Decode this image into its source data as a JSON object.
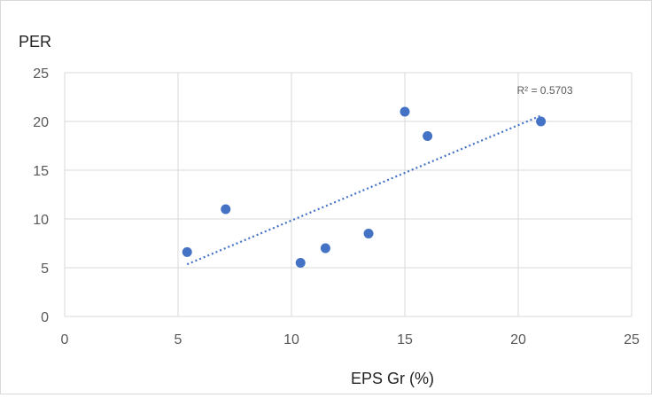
{
  "chart_data": {
    "type": "scatter",
    "title": "",
    "xlabel": "EPS Gr (%)",
    "ylabel": "PER",
    "xlim": [
      0,
      25
    ],
    "ylim": [
      0,
      25
    ],
    "x_ticks": [
      0,
      5,
      10,
      15,
      20,
      25
    ],
    "y_ticks": [
      0,
      5,
      10,
      15,
      20,
      25
    ],
    "grid": true,
    "points": [
      {
        "x": 5.4,
        "y": 6.6
      },
      {
        "x": 7.1,
        "y": 11.0
      },
      {
        "x": 10.4,
        "y": 5.5
      },
      {
        "x": 11.5,
        "y": 7.0
      },
      {
        "x": 13.4,
        "y": 8.5
      },
      {
        "x": 15.0,
        "y": 21.0
      },
      {
        "x": 16.0,
        "y": 18.5
      },
      {
        "x": 21.0,
        "y": 20.0
      }
    ],
    "trendline": {
      "type": "linear",
      "style": "dotted",
      "x_range": [
        5.4,
        21.0
      ]
    },
    "annotation": "R² = 0.5703",
    "colors": {
      "marker": "#4472c4",
      "trendline": "#4472c4",
      "grid": "#d9d9d9"
    }
  }
}
